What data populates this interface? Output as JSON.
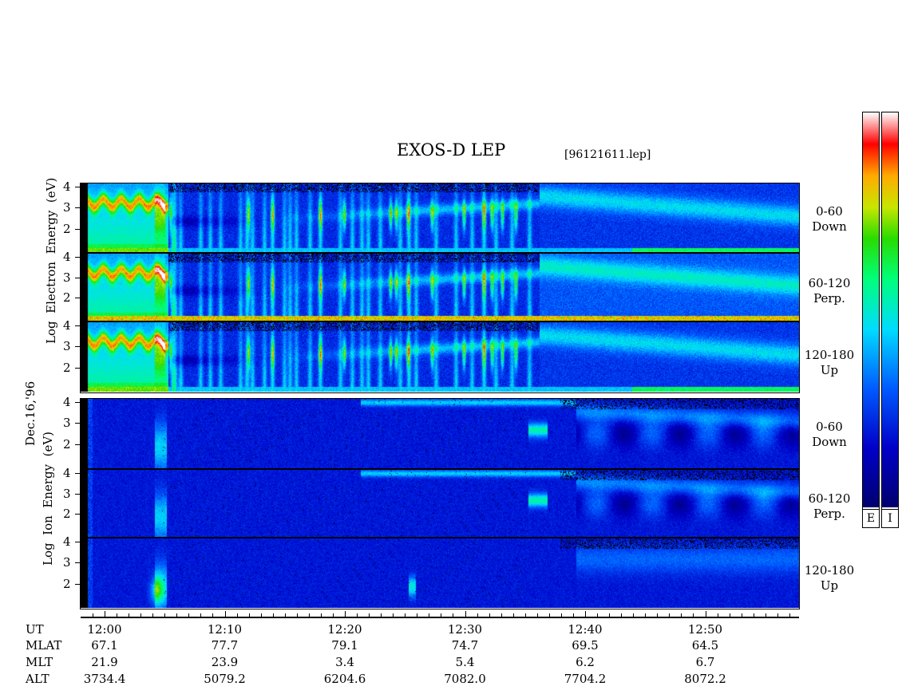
{
  "title": "EXOS-D LEP",
  "filename": "[96121611.lep]",
  "date_label": "Dec.16,'96",
  "electron_ylabel": [
    "Log",
    "Electron",
    "Energy",
    "(eV)"
  ],
  "ion_ylabel": [
    "Log",
    "Ion",
    "Energy",
    "(eV)"
  ],
  "colorbar_letters": [
    "E",
    "I"
  ],
  "chart_data": {
    "type": "heatmap",
    "title": "EXOS-D LEP",
    "xlabel": "UT",
    "x_ticks": [
      "12:00",
      "12:10",
      "12:20",
      "12:30",
      "12:40",
      "12:50"
    ],
    "y_ticks": [
      "4",
      "3",
      "2"
    ],
    "ylim": [
      1,
      4
    ],
    "panels": [
      {
        "species": "Electron",
        "pitch_angle": "0-60",
        "direction": "Down"
      },
      {
        "species": "Electron",
        "pitch_angle": "60-120",
        "direction": "Perp."
      },
      {
        "species": "Electron",
        "pitch_angle": "120-180",
        "direction": "Up"
      },
      {
        "species": "Ion",
        "pitch_angle": "0-60",
        "direction": "Down"
      },
      {
        "species": "Ion",
        "pitch_angle": "60-120",
        "direction": "Perp."
      },
      {
        "species": "Ion",
        "pitch_angle": "120-180",
        "direction": "Up"
      }
    ],
    "orbit_table": {
      "rows": [
        {
          "label": "UT",
          "values": [
            "12:00",
            "12:10",
            "12:20",
            "12:30",
            "12:40",
            "12:50"
          ]
        },
        {
          "label": "MLAT",
          "values": [
            "67.1",
            "77.7",
            "79.1",
            "74.7",
            "69.5",
            "64.5"
          ]
        },
        {
          "label": "MLT",
          "values": [
            "21.9",
            "23.9",
            "3.4",
            "5.4",
            "6.2",
            "6.7"
          ]
        },
        {
          "label": "ALT",
          "values": [
            "3734.4",
            "5079.2",
            "6204.6",
            "7082.0",
            "7704.2",
            "8072.2"
          ]
        }
      ]
    },
    "colors": {
      "low": "#00007f",
      "mid": "#00ffff",
      "high": "#ff0000",
      "max": "#ffffff"
    }
  }
}
